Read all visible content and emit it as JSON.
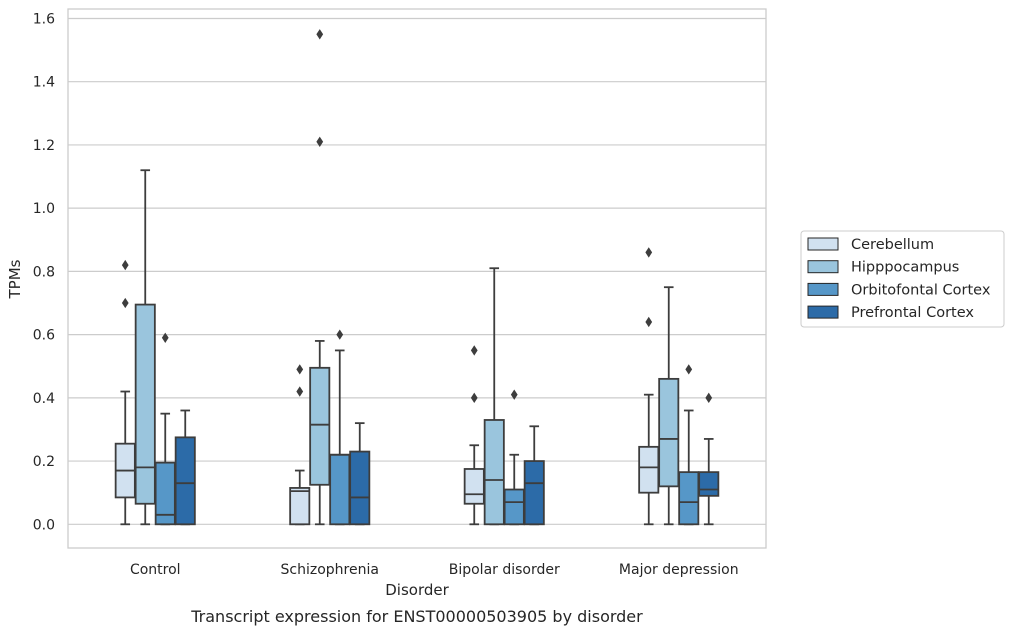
{
  "chart_data": {
    "type": "boxplot",
    "title": "",
    "caption": "Transcript expression for ENST00000503905 by disorder",
    "xlabel": "Disorder",
    "ylabel": "TPMs",
    "ylim": [
      -0.075,
      1.63
    ],
    "yticks": [
      0.0,
      0.2,
      0.4,
      0.6,
      0.8,
      1.0,
      1.2,
      1.4,
      1.6
    ],
    "ytick_labels": [
      "0.0",
      "0.2",
      "0.4",
      "0.6",
      "0.8",
      "1.0",
      "1.2",
      "1.4",
      "1.6"
    ],
    "grid": "horizontal",
    "legend_position": "right",
    "categories": [
      "Control",
      "Schizophrenia",
      "Bipolar disorder",
      "Major depression"
    ],
    "series": [
      {
        "name": "Cerebellum",
        "color": "#d1e1f0",
        "boxes": [
          {
            "whislo": 0.0,
            "q1": 0.085,
            "med": 0.17,
            "q3": 0.255,
            "whishi": 0.42,
            "fliers": [
              0.7,
              0.82
            ]
          },
          {
            "whislo": 0.0,
            "q1": 0.0,
            "med": 0.105,
            "q3": 0.115,
            "whishi": 0.17,
            "fliers": [
              0.42,
              0.49
            ]
          },
          {
            "whislo": 0.0,
            "q1": 0.065,
            "med": 0.095,
            "q3": 0.175,
            "whishi": 0.25,
            "fliers": [
              0.4,
              0.55
            ]
          },
          {
            "whislo": 0.0,
            "q1": 0.1,
            "med": 0.18,
            "q3": 0.245,
            "whishi": 0.41,
            "fliers": [
              0.64,
              0.86
            ]
          }
        ]
      },
      {
        "name": "Hipppocampus",
        "color": "#9ac5dd",
        "boxes": [
          {
            "whislo": 0.0,
            "q1": 0.065,
            "med": 0.18,
            "q3": 0.695,
            "whishi": 1.12,
            "fliers": []
          },
          {
            "whislo": 0.0,
            "q1": 0.125,
            "med": 0.315,
            "q3": 0.495,
            "whishi": 0.58,
            "fliers": [
              1.21,
              1.55
            ]
          },
          {
            "whislo": 0.0,
            "q1": 0.0,
            "med": 0.14,
            "q3": 0.33,
            "whishi": 0.81,
            "fliers": []
          },
          {
            "whislo": 0.0,
            "q1": 0.12,
            "med": 0.27,
            "q3": 0.46,
            "whishi": 0.75,
            "fliers": []
          }
        ]
      },
      {
        "name": "Orbitofontal Cortex",
        "color": "#5697c8",
        "boxes": [
          {
            "whislo": 0.0,
            "q1": 0.0,
            "med": 0.03,
            "q3": 0.195,
            "whishi": 0.35,
            "fliers": [
              0.59
            ]
          },
          {
            "whislo": 0.0,
            "q1": 0.0,
            "med": 0.22,
            "q3": 0.22,
            "whishi": 0.55,
            "fliers": [
              0.6
            ]
          },
          {
            "whislo": 0.0,
            "q1": 0.0,
            "med": 0.07,
            "q3": 0.11,
            "whishi": 0.22,
            "fliers": [
              0.41
            ]
          },
          {
            "whislo": 0.0,
            "q1": 0.0,
            "med": 0.07,
            "q3": 0.165,
            "whishi": 0.36,
            "fliers": [
              0.49
            ]
          }
        ]
      },
      {
        "name": "Prefrontal Cortex",
        "color": "#2c6ba8",
        "boxes": [
          {
            "whislo": 0.0,
            "q1": 0.0,
            "med": 0.13,
            "q3": 0.275,
            "whishi": 0.36,
            "fliers": []
          },
          {
            "whislo": 0.0,
            "q1": 0.0,
            "med": 0.085,
            "q3": 0.23,
            "whishi": 0.32,
            "fliers": []
          },
          {
            "whislo": 0.0,
            "q1": 0.0,
            "med": 0.13,
            "q3": 0.2,
            "whishi": 0.31,
            "fliers": []
          },
          {
            "whislo": 0.0,
            "q1": 0.09,
            "med": 0.11,
            "q3": 0.165,
            "whishi": 0.27,
            "fliers": [
              0.4
            ]
          }
        ]
      }
    ]
  },
  "colors": {
    "grid": "#cccccc",
    "frame": "#cccccc",
    "box_edge": "#3d3d3d"
  }
}
